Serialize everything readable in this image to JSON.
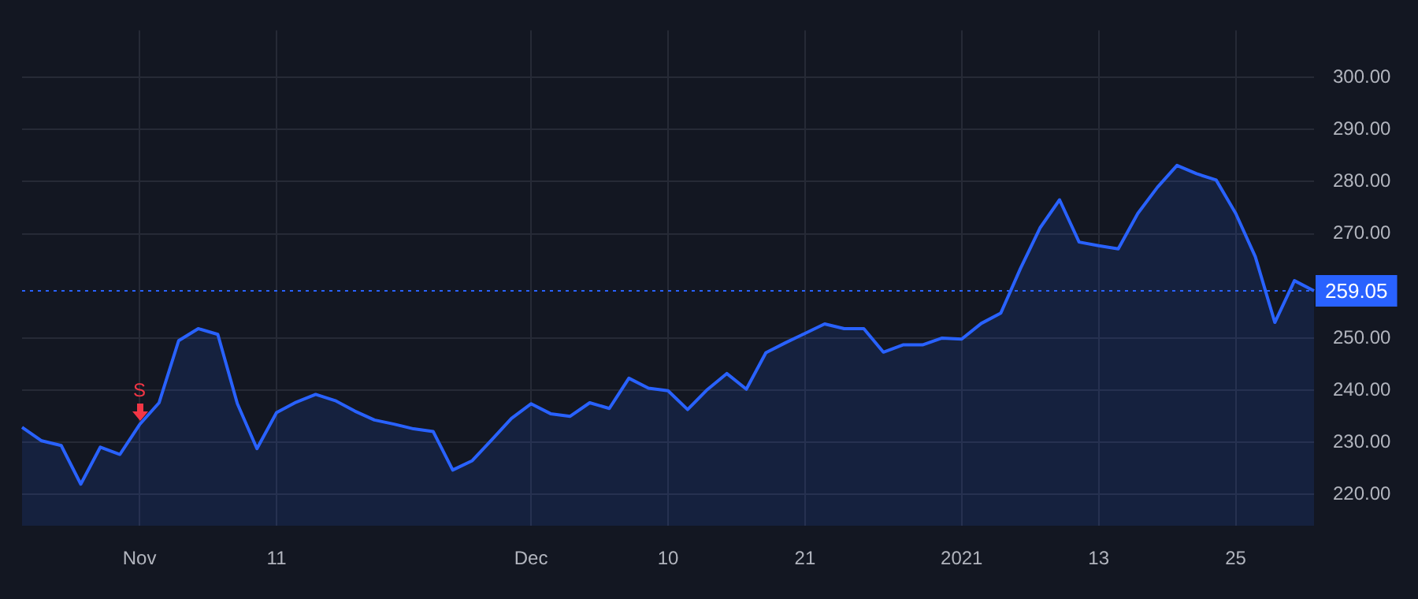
{
  "chart_data": {
    "type": "area",
    "categories": [
      null,
      null,
      null,
      null,
      null,
      null,
      "Nov",
      null,
      null,
      null,
      null,
      null,
      null,
      "11",
      null,
      null,
      null,
      null,
      null,
      null,
      null,
      null,
      null,
      null,
      null,
      null,
      "Dec",
      null,
      null,
      null,
      null,
      null,
      null,
      "10",
      null,
      null,
      null,
      null,
      null,
      null,
      "21",
      null,
      null,
      null,
      null,
      null,
      null,
      null,
      "2021",
      null,
      null,
      null,
      null,
      null,
      null,
      "13",
      null,
      null,
      null,
      null,
      null,
      null,
      "25",
      null,
      null,
      null,
      null
    ],
    "series": [
      {
        "color": "#2962ff",
        "values": [
          232.9,
          230.3,
          229.4,
          222.0,
          229.1,
          227.7,
          233.4,
          237.6,
          249.5,
          251.8,
          250.7,
          237.4,
          228.8,
          235.7,
          237.7,
          239.2,
          238.0,
          236.0,
          234.3,
          233.5,
          232.6,
          232.1,
          224.7,
          226.5,
          230.5,
          234.6,
          237.4,
          235.5,
          235.0,
          237.6,
          236.5,
          242.3,
          240.4,
          239.9,
          236.3,
          240.1,
          243.2,
          240.2,
          247.2,
          249.1,
          250.9,
          252.7,
          251.8,
          251.8,
          247.3,
          248.7,
          248.7,
          250.0,
          249.8,
          252.8,
          254.8,
          263.3,
          271.1,
          276.5,
          268.4,
          267.7,
          267.1,
          273.9,
          278.9,
          283.1,
          281.5,
          280.3,
          273.9,
          265.6,
          253.0,
          261.0,
          259.05
        ]
      }
    ],
    "ylim": [
      214,
      309
    ],
    "yticks": [
      {
        "value": 220,
        "label": "220.00"
      },
      {
        "value": 230,
        "label": "230.00"
      },
      {
        "value": 240,
        "label": "240.00"
      },
      {
        "value": 250,
        "label": "250.00"
      },
      {
        "value": 270,
        "label": "270.00"
      },
      {
        "value": 280,
        "label": "280.00"
      },
      {
        "value": 290,
        "label": "290.00"
      },
      {
        "value": 300,
        "label": "300.00"
      }
    ],
    "grid": true,
    "ref_lines": [
      {
        "axis": "y",
        "value": 259.05,
        "label": "259.05",
        "color": "#2962ff",
        "line_style": "dotted"
      }
    ],
    "annotations": [
      {
        "text": "S",
        "x": "Nov",
        "y": 233.4
      }
    ]
  }
}
